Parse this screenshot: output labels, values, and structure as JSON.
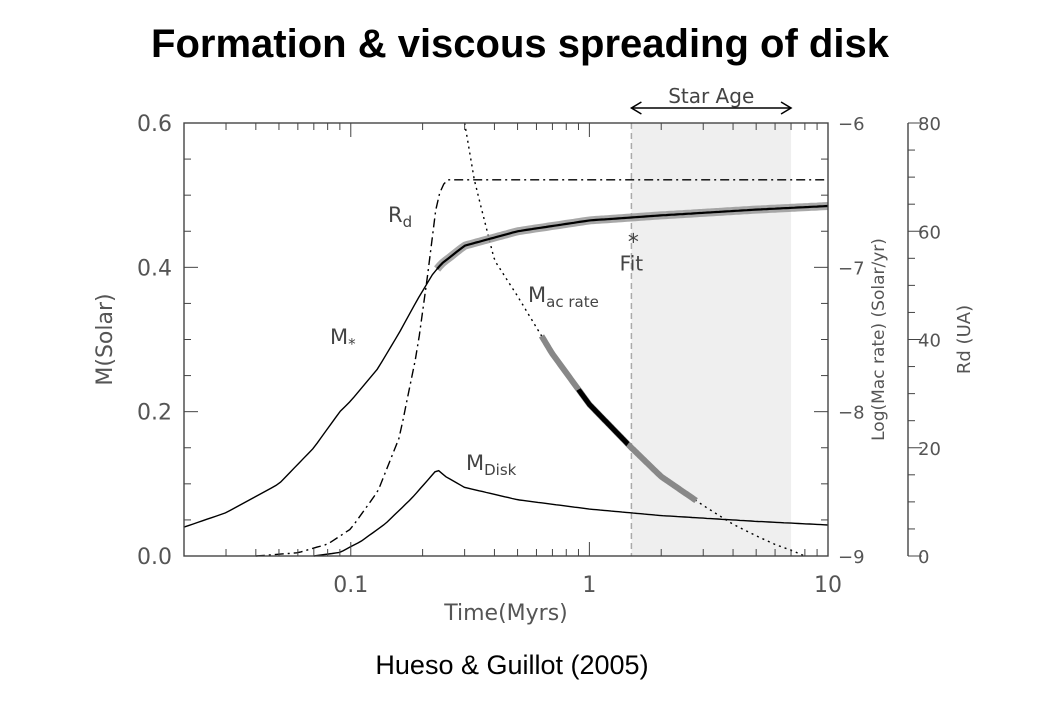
{
  "title": "Formation & viscous spreading of disk",
  "caption": "Hueso & Guillot (2005)",
  "chart_data": {
    "type": "line",
    "x_scale": "log",
    "xlim": [
      0.02,
      10
    ],
    "xlabel": "Time(Myrs)",
    "x_ticks": [
      0.1,
      1,
      10
    ],
    "x_tick_labels": [
      "0.1",
      "1",
      "10"
    ],
    "left_axis": {
      "label": "M(Solar)",
      "ylim": [
        0,
        0.6
      ],
      "ticks": [
        0.0,
        0.2,
        0.4,
        0.6
      ],
      "tick_labels": [
        "0.0",
        "0.2",
        "0.4",
        "0.6"
      ]
    },
    "right_axis_1": {
      "label": "Log(Mac rate) (Solar/yr)",
      "ylim": [
        -9,
        -6
      ],
      "ticks": [
        -9,
        -8,
        -7,
        -6
      ],
      "tick_labels": [
        "−9",
        "−8",
        "−7",
        "−6"
      ]
    },
    "right_axis_2": {
      "label": "Rd (UA)",
      "ylim": [
        0,
        80
      ],
      "ticks": [
        0,
        20,
        40,
        60,
        80
      ],
      "tick_labels": [
        "0",
        "20",
        "40",
        "60",
        "80"
      ]
    },
    "band": {
      "label": "Star Age",
      "x_range": [
        1.5,
        7
      ]
    },
    "series": [
      {
        "name": "M*",
        "axis": "left",
        "style": "solid",
        "x": [
          0.02,
          0.03,
          0.05,
          0.07,
          0.09,
          0.1,
          0.13,
          0.16,
          0.19,
          0.22,
          0.24,
          0.3,
          0.5,
          1,
          2,
          5,
          10
        ],
        "y": [
          0.04,
          0.06,
          0.1,
          0.15,
          0.2,
          0.215,
          0.26,
          0.31,
          0.355,
          0.39,
          0.405,
          0.43,
          0.45,
          0.465,
          0.472,
          0.48,
          0.485
        ]
      },
      {
        "name": "MDisk",
        "axis": "left",
        "style": "solid",
        "x": [
          0.07,
          0.09,
          0.11,
          0.14,
          0.18,
          0.21,
          0.23,
          0.25,
          0.3,
          0.5,
          1,
          2,
          5,
          10
        ],
        "y": [
          0.0,
          0.005,
          0.02,
          0.045,
          0.08,
          0.105,
          0.12,
          0.11,
          0.095,
          0.078,
          0.065,
          0.056,
          0.048,
          0.043
        ]
      },
      {
        "name": "Rd",
        "axis": "right_2",
        "style": "dashdot",
        "x": [
          0.04,
          0.06,
          0.08,
          0.1,
          0.13,
          0.16,
          0.19,
          0.21,
          0.23,
          0.25,
          0.3,
          1,
          10
        ],
        "y": [
          0,
          0.6,
          2.2,
          5,
          12,
          22,
          38,
          52,
          66,
          69.5,
          69.5,
          69.5,
          69.5
        ]
      },
      {
        "name": "Mac rate",
        "axis": "right_1",
        "style": "dotted",
        "x": [
          0.3,
          0.33,
          0.36,
          0.4,
          0.5,
          0.7,
          1,
          1.5,
          2,
          3,
          4,
          5,
          6,
          7,
          8
        ],
        "y": [
          -6,
          -6.4,
          -6.65,
          -6.95,
          -7.2,
          -7.6,
          -7.95,
          -8.25,
          -8.45,
          -8.65,
          -8.78,
          -8.86,
          -8.92,
          -8.96,
          -9
        ]
      }
    ],
    "annotations": [
      {
        "text": "Fit",
        "marker": "*",
        "x": 1.5,
        "y_left": 0.44
      }
    ],
    "labels": {
      "mstar": "M",
      "mstar_sub": "*",
      "mdisk": "M",
      "mdisk_sub": "Disk",
      "rd": "R",
      "rd_sub": "d",
      "macrate": "M",
      "macrate_sub": "ac rate"
    }
  }
}
